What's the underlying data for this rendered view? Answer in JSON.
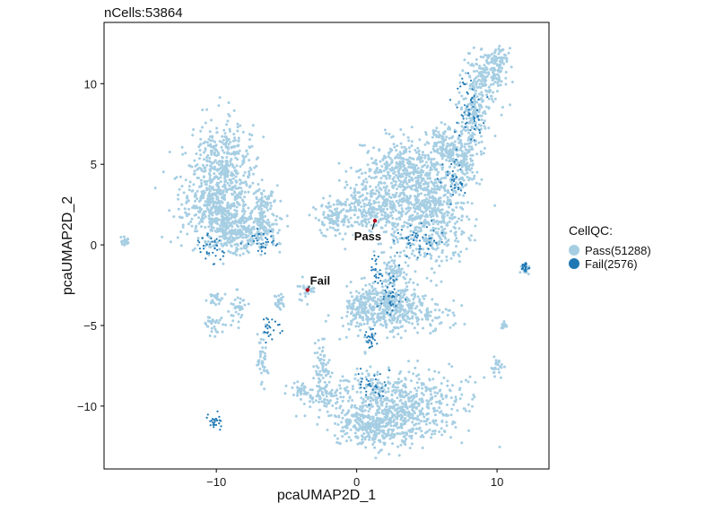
{
  "chart_data": {
    "type": "scatter",
    "title": "nCells:53864",
    "xlabel": "pcaUMAP2D_1",
    "ylabel": "pcaUMAP2D_2",
    "xlim": [
      -18,
      13.7
    ],
    "ylim": [
      -13.9,
      13.8
    ],
    "xticks": [
      -10,
      0,
      10
    ],
    "xtick_labels": [
      "−10",
      "0",
      "10"
    ],
    "yticks": [
      -10,
      -5,
      0,
      5,
      10
    ],
    "ytick_labels": [
      "−10",
      "−5",
      "0",
      "5",
      "10"
    ],
    "grid": false,
    "legend": {
      "title": "CellQC:",
      "placement": "right",
      "entries": [
        {
          "label": "Pass(51288)",
          "color": "#a6cee3"
        },
        {
          "label": "Fail(2576)",
          "color": "#1f78b4"
        }
      ]
    },
    "series": [
      {
        "name": "Pass(51288)",
        "color": "#a6cee3",
        "count": 51288,
        "clusters": [
          {
            "x": -9.5,
            "y": 4.8,
            "sx": 1.1,
            "sy": 1.4
          },
          {
            "x": -9.8,
            "y": 2.2,
            "sx": 1.5,
            "sy": 1.1
          },
          {
            "x": -8.5,
            "y": 0.7,
            "sx": 1.0,
            "sy": 0.7
          },
          {
            "x": -7.0,
            "y": 1.0,
            "sx": 0.8,
            "sy": 0.6
          },
          {
            "x": -6.5,
            "y": 2.6,
            "sx": 0.4,
            "sy": 0.4
          },
          {
            "x": 1.2,
            "y": 2.3,
            "sx": 1.2,
            "sy": 0.9
          },
          {
            "x": -1.5,
            "y": 1.8,
            "sx": 0.7,
            "sy": 0.6
          },
          {
            "x": 3.5,
            "y": 4.5,
            "sx": 1.7,
            "sy": 1.1
          },
          {
            "x": 5.3,
            "y": 1.8,
            "sx": 1.3,
            "sy": 1.4
          },
          {
            "x": 7.5,
            "y": 5.2,
            "sx": 0.6,
            "sy": 0.9
          },
          {
            "x": 8.3,
            "y": 8.0,
            "sx": 0.5,
            "sy": 1.2
          },
          {
            "x": 9.3,
            "y": 10.4,
            "sx": 0.7,
            "sy": 0.9
          },
          {
            "x": 10.2,
            "y": 11.6,
            "sx": 0.5,
            "sy": 0.4
          },
          {
            "x": 6.5,
            "y": 6.3,
            "sx": 0.7,
            "sy": 0.6
          },
          {
            "x": 2.5,
            "y": -1.5,
            "sx": 0.5,
            "sy": 0.6
          },
          {
            "x": 2.5,
            "y": -3.5,
            "sx": 1.2,
            "sy": 0.6
          },
          {
            "x": 2.7,
            "y": -4.3,
            "sx": 1.8,
            "sy": 0.6
          },
          {
            "x": 0.3,
            "y": -3.8,
            "sx": 0.6,
            "sy": 0.6
          },
          {
            "x": 3.0,
            "y": -10.0,
            "sx": 2.3,
            "sy": 1.1
          },
          {
            "x": 1.0,
            "y": -11.3,
            "sx": 1.3,
            "sy": 0.7
          },
          {
            "x": -2.2,
            "y": -9.3,
            "sx": 0.8,
            "sy": 0.4
          },
          {
            "x": -4.0,
            "y": -9.0,
            "sx": 0.4,
            "sy": 0.3
          },
          {
            "x": -2.5,
            "y": -7.5,
            "sx": 0.3,
            "sy": 0.7
          },
          {
            "x": -3.5,
            "y": -2.8,
            "sx": 0.4,
            "sy": 0.3
          },
          {
            "x": -10.2,
            "y": -5.0,
            "sx": 0.3,
            "sy": 0.4
          },
          {
            "x": -8.5,
            "y": -4.0,
            "sx": 0.3,
            "sy": 0.5
          },
          {
            "x": -10.0,
            "y": -3.3,
            "sx": 0.3,
            "sy": 0.2
          },
          {
            "x": -6.7,
            "y": -7.0,
            "sx": 0.2,
            "sy": 0.8
          },
          {
            "x": -5.5,
            "y": -3.5,
            "sx": 0.2,
            "sy": 0.3
          },
          {
            "x": 10.0,
            "y": -7.6,
            "sx": 0.2,
            "sy": 0.3
          },
          {
            "x": 12.0,
            "y": -1.5,
            "sx": 0.15,
            "sy": 0.15
          },
          {
            "x": 10.5,
            "y": -5.0,
            "sx": 0.1,
            "sy": 0.1
          },
          {
            "x": -16.5,
            "y": 0.2,
            "sx": 0.15,
            "sy": 0.1
          }
        ]
      },
      {
        "name": "Fail(2576)",
        "color": "#1f78b4",
        "count": 2576,
        "clusters": [
          {
            "x": -6.2,
            "y": -5.2,
            "sx": 0.3,
            "sy": 0.4
          },
          {
            "x": 1.5,
            "y": -1.8,
            "sx": 0.3,
            "sy": 0.5
          },
          {
            "x": 2.3,
            "y": -2.8,
            "sx": 0.5,
            "sy": 0.7
          },
          {
            "x": 1.0,
            "y": -5.7,
            "sx": 0.2,
            "sy": 0.3
          },
          {
            "x": -10.0,
            "y": -10.9,
            "sx": 0.3,
            "sy": 0.3
          },
          {
            "x": 1.0,
            "y": -8.7,
            "sx": 0.6,
            "sy": 0.5
          },
          {
            "x": 4.5,
            "y": 0.2,
            "sx": 0.8,
            "sy": 0.5
          },
          {
            "x": 7.0,
            "y": 4.0,
            "sx": 0.5,
            "sy": 0.6
          },
          {
            "x": 8.0,
            "y": 8.2,
            "sx": 0.5,
            "sy": 1.0
          },
          {
            "x": -6.8,
            "y": 0.2,
            "sx": 0.7,
            "sy": 0.4
          },
          {
            "x": -10.3,
            "y": -0.3,
            "sx": 0.6,
            "sy": 0.5
          },
          {
            "x": 12.0,
            "y": -1.4,
            "sx": 0.15,
            "sy": 0.15
          }
        ]
      }
    ],
    "annotations": [
      {
        "label": "Pass",
        "x": 1.3,
        "y": 1.5
      },
      {
        "label": "Fail",
        "x": -3.5,
        "y": -2.8
      }
    ]
  }
}
